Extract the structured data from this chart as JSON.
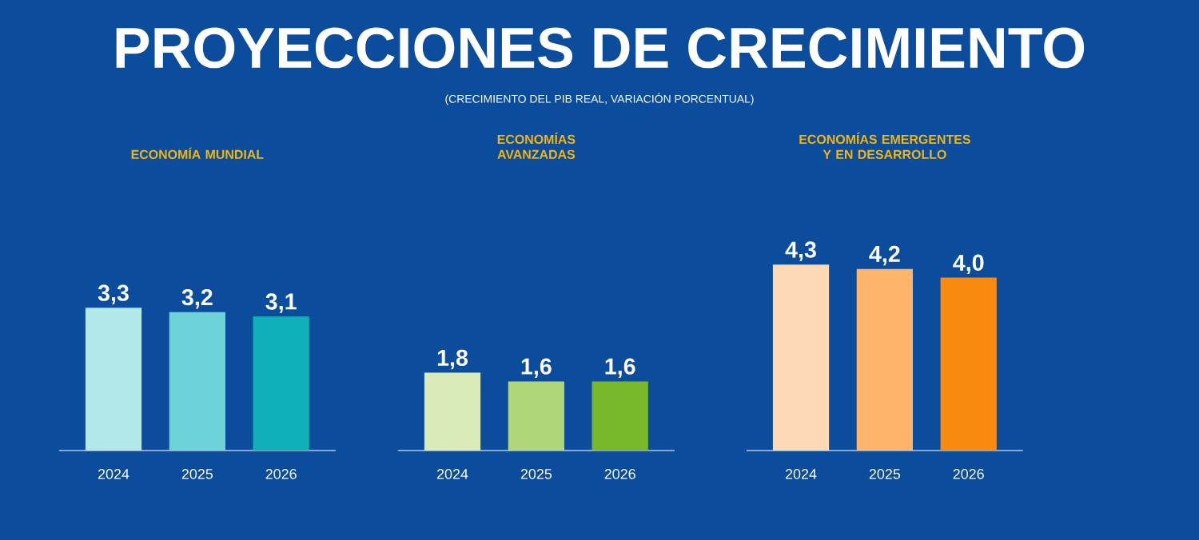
{
  "chart_data": [
    {
      "type": "bar",
      "title": "ECONOMÍA MUNDIAL",
      "annotations": [
        "PROYECCIONES DE CRECIMIENTO",
        "(CRECIMIENTO DEL PIB REAL, VARIACIÓN PORCENTUAL)"
      ],
      "categories": [
        "2024",
        "2025",
        "2026"
      ],
      "values": [
        3.3,
        3.2,
        3.1
      ],
      "value_labels": [
        "3,3",
        "3,2",
        "3,1"
      ],
      "colors": [
        "#b2e8ea",
        "#6dd3d8",
        "#0fb0b8"
      ]
    },
    {
      "type": "bar",
      "title": "ECONOMÍAS AVANZADAS",
      "categories": [
        "2024",
        "2025",
        "2026"
      ],
      "values": [
        1.8,
        1.6,
        1.6
      ],
      "value_labels": [
        "1,8",
        "1,6",
        "1,6"
      ],
      "colors": [
        "#d9ebb8",
        "#b0d67a",
        "#78b82a"
      ]
    },
    {
      "type": "bar",
      "title": "ECONOMÍAS EMERGENTES Y EN DESARROLLO",
      "categories": [
        "2024",
        "2025",
        "2026"
      ],
      "values": [
        4.3,
        4.2,
        4.0
      ],
      "value_labels": [
        "4,3",
        "4,2",
        "4,0"
      ],
      "colors": [
        "#fdd9b5",
        "#fdb46b",
        "#f98a10"
      ]
    }
  ]
}
